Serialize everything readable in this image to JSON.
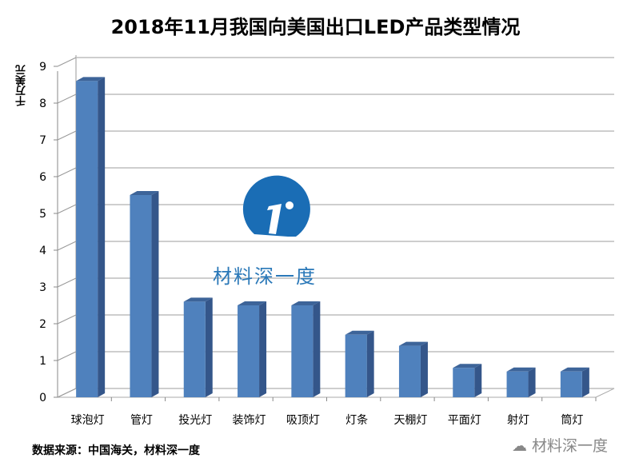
{
  "chart_data": {
    "type": "bar",
    "title": "2018年11月我国向美国出口LED产品类型情况",
    "ylabel": "千万美元",
    "xlabel": "",
    "categories": [
      "球泡灯",
      "管灯",
      "投光灯",
      "装饰灯",
      "吸顶灯",
      "灯条",
      "天棚灯",
      "平面灯",
      "射灯",
      "筒灯"
    ],
    "values": [
      8.6,
      5.5,
      2.6,
      2.5,
      2.5,
      1.7,
      1.4,
      0.8,
      0.7,
      0.7
    ],
    "ylim": [
      0,
      9
    ],
    "yticks": [
      "0",
      "1",
      "2",
      "3",
      "4",
      "5",
      "6",
      "7",
      "8",
      "9"
    ],
    "grid": true,
    "style": "3d-column",
    "bar_color": "#4f81bd",
    "source": "数据来源：中国海关，材料深一度"
  },
  "watermark": {
    "logo_text": "材料深一度",
    "logo_color": "#1a6db5",
    "footer_text": "材料深一度"
  }
}
